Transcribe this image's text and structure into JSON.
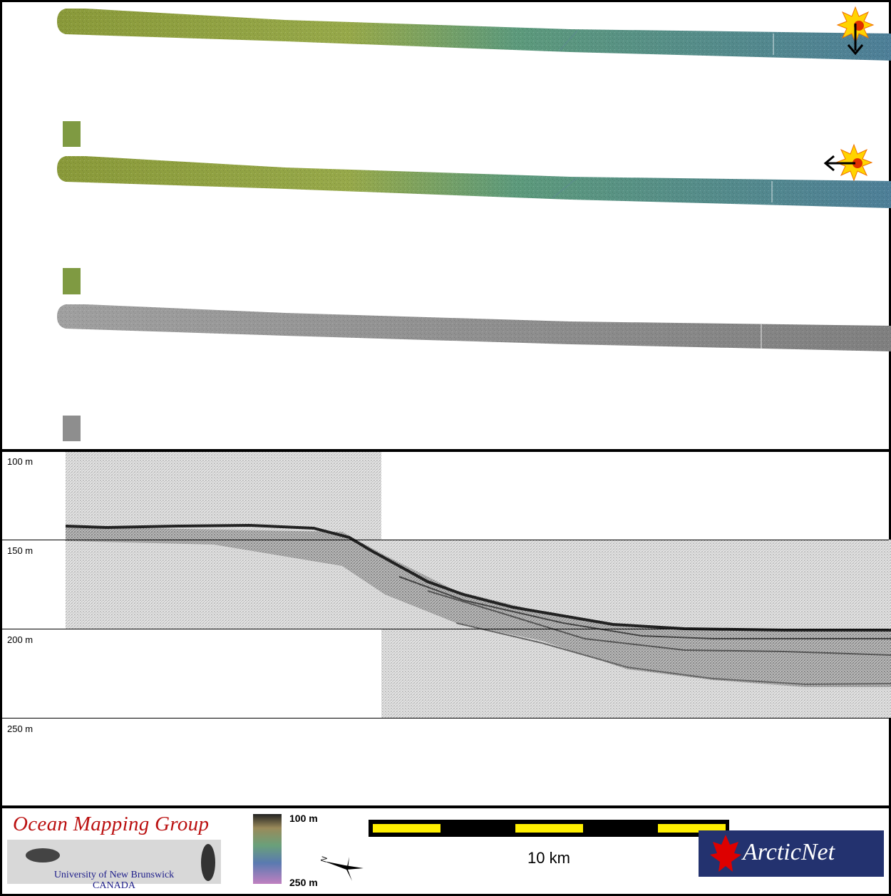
{
  "profile": {
    "depth_labels": [
      "100 m",
      "150 m",
      "200 m",
      "250 m"
    ]
  },
  "legend": {
    "top_label": "100 m",
    "bottom_label": "250 m"
  },
  "scalebar": {
    "label": "10 km"
  },
  "north_arrow": {
    "label": "N"
  },
  "logos": {
    "omg_title": "Ocean Mapping Group",
    "omg_line1": "University of New Brunswick",
    "omg_line2": "CANADA",
    "arcticnet": "ArcticNet"
  },
  "colors": {
    "swath_west": "#8a9a3a",
    "swath_mid": "#5d9a7c",
    "swath_east": "#4e7f98",
    "backscatter": "#8a8a8a",
    "scale_fill": "#ffef00",
    "omg_red": "#b11111",
    "arcticnet_blue": "#23326f"
  }
}
